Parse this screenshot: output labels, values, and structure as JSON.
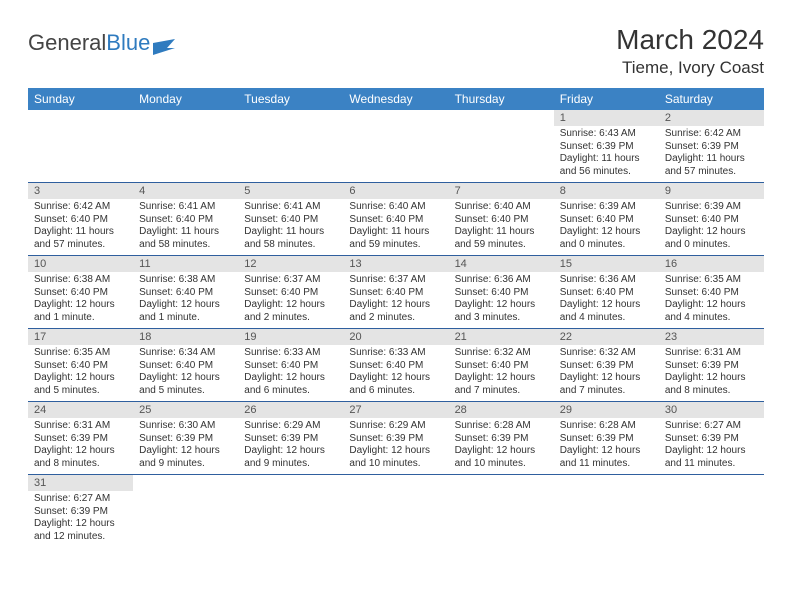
{
  "logo": {
    "text1": "General",
    "text2": "Blue"
  },
  "title": "March 2024",
  "location": "Tieme, Ivory Coast",
  "colors": {
    "header_bg": "#3b82c4",
    "header_fg": "#ffffff",
    "daynum_bg": "#e4e4e4",
    "row_border": "#2f5f9e",
    "logo_blue": "#2f7bbf"
  },
  "weekdays": [
    "Sunday",
    "Monday",
    "Tuesday",
    "Wednesday",
    "Thursday",
    "Friday",
    "Saturday"
  ],
  "weeks": [
    [
      null,
      null,
      null,
      null,
      null,
      {
        "n": "1",
        "sr": "Sunrise: 6:43 AM",
        "ss": "Sunset: 6:39 PM",
        "dl": "Daylight: 11 hours and 56 minutes."
      },
      {
        "n": "2",
        "sr": "Sunrise: 6:42 AM",
        "ss": "Sunset: 6:39 PM",
        "dl": "Daylight: 11 hours and 57 minutes."
      }
    ],
    [
      {
        "n": "3",
        "sr": "Sunrise: 6:42 AM",
        "ss": "Sunset: 6:40 PM",
        "dl": "Daylight: 11 hours and 57 minutes."
      },
      {
        "n": "4",
        "sr": "Sunrise: 6:41 AM",
        "ss": "Sunset: 6:40 PM",
        "dl": "Daylight: 11 hours and 58 minutes."
      },
      {
        "n": "5",
        "sr": "Sunrise: 6:41 AM",
        "ss": "Sunset: 6:40 PM",
        "dl": "Daylight: 11 hours and 58 minutes."
      },
      {
        "n": "6",
        "sr": "Sunrise: 6:40 AM",
        "ss": "Sunset: 6:40 PM",
        "dl": "Daylight: 11 hours and 59 minutes."
      },
      {
        "n": "7",
        "sr": "Sunrise: 6:40 AM",
        "ss": "Sunset: 6:40 PM",
        "dl": "Daylight: 11 hours and 59 minutes."
      },
      {
        "n": "8",
        "sr": "Sunrise: 6:39 AM",
        "ss": "Sunset: 6:40 PM",
        "dl": "Daylight: 12 hours and 0 minutes."
      },
      {
        "n": "9",
        "sr": "Sunrise: 6:39 AM",
        "ss": "Sunset: 6:40 PM",
        "dl": "Daylight: 12 hours and 0 minutes."
      }
    ],
    [
      {
        "n": "10",
        "sr": "Sunrise: 6:38 AM",
        "ss": "Sunset: 6:40 PM",
        "dl": "Daylight: 12 hours and 1 minute."
      },
      {
        "n": "11",
        "sr": "Sunrise: 6:38 AM",
        "ss": "Sunset: 6:40 PM",
        "dl": "Daylight: 12 hours and 1 minute."
      },
      {
        "n": "12",
        "sr": "Sunrise: 6:37 AM",
        "ss": "Sunset: 6:40 PM",
        "dl": "Daylight: 12 hours and 2 minutes."
      },
      {
        "n": "13",
        "sr": "Sunrise: 6:37 AM",
        "ss": "Sunset: 6:40 PM",
        "dl": "Daylight: 12 hours and 2 minutes."
      },
      {
        "n": "14",
        "sr": "Sunrise: 6:36 AM",
        "ss": "Sunset: 6:40 PM",
        "dl": "Daylight: 12 hours and 3 minutes."
      },
      {
        "n": "15",
        "sr": "Sunrise: 6:36 AM",
        "ss": "Sunset: 6:40 PM",
        "dl": "Daylight: 12 hours and 4 minutes."
      },
      {
        "n": "16",
        "sr": "Sunrise: 6:35 AM",
        "ss": "Sunset: 6:40 PM",
        "dl": "Daylight: 12 hours and 4 minutes."
      }
    ],
    [
      {
        "n": "17",
        "sr": "Sunrise: 6:35 AM",
        "ss": "Sunset: 6:40 PM",
        "dl": "Daylight: 12 hours and 5 minutes."
      },
      {
        "n": "18",
        "sr": "Sunrise: 6:34 AM",
        "ss": "Sunset: 6:40 PM",
        "dl": "Daylight: 12 hours and 5 minutes."
      },
      {
        "n": "19",
        "sr": "Sunrise: 6:33 AM",
        "ss": "Sunset: 6:40 PM",
        "dl": "Daylight: 12 hours and 6 minutes."
      },
      {
        "n": "20",
        "sr": "Sunrise: 6:33 AM",
        "ss": "Sunset: 6:40 PM",
        "dl": "Daylight: 12 hours and 6 minutes."
      },
      {
        "n": "21",
        "sr": "Sunrise: 6:32 AM",
        "ss": "Sunset: 6:40 PM",
        "dl": "Daylight: 12 hours and 7 minutes."
      },
      {
        "n": "22",
        "sr": "Sunrise: 6:32 AM",
        "ss": "Sunset: 6:39 PM",
        "dl": "Daylight: 12 hours and 7 minutes."
      },
      {
        "n": "23",
        "sr": "Sunrise: 6:31 AM",
        "ss": "Sunset: 6:39 PM",
        "dl": "Daylight: 12 hours and 8 minutes."
      }
    ],
    [
      {
        "n": "24",
        "sr": "Sunrise: 6:31 AM",
        "ss": "Sunset: 6:39 PM",
        "dl": "Daylight: 12 hours and 8 minutes."
      },
      {
        "n": "25",
        "sr": "Sunrise: 6:30 AM",
        "ss": "Sunset: 6:39 PM",
        "dl": "Daylight: 12 hours and 9 minutes."
      },
      {
        "n": "26",
        "sr": "Sunrise: 6:29 AM",
        "ss": "Sunset: 6:39 PM",
        "dl": "Daylight: 12 hours and 9 minutes."
      },
      {
        "n": "27",
        "sr": "Sunrise: 6:29 AM",
        "ss": "Sunset: 6:39 PM",
        "dl": "Daylight: 12 hours and 10 minutes."
      },
      {
        "n": "28",
        "sr": "Sunrise: 6:28 AM",
        "ss": "Sunset: 6:39 PM",
        "dl": "Daylight: 12 hours and 10 minutes."
      },
      {
        "n": "29",
        "sr": "Sunrise: 6:28 AM",
        "ss": "Sunset: 6:39 PM",
        "dl": "Daylight: 12 hours and 11 minutes."
      },
      {
        "n": "30",
        "sr": "Sunrise: 6:27 AM",
        "ss": "Sunset: 6:39 PM",
        "dl": "Daylight: 12 hours and 11 minutes."
      }
    ],
    [
      {
        "n": "31",
        "sr": "Sunrise: 6:27 AM",
        "ss": "Sunset: 6:39 PM",
        "dl": "Daylight: 12 hours and 12 minutes."
      },
      null,
      null,
      null,
      null,
      null,
      null
    ]
  ]
}
